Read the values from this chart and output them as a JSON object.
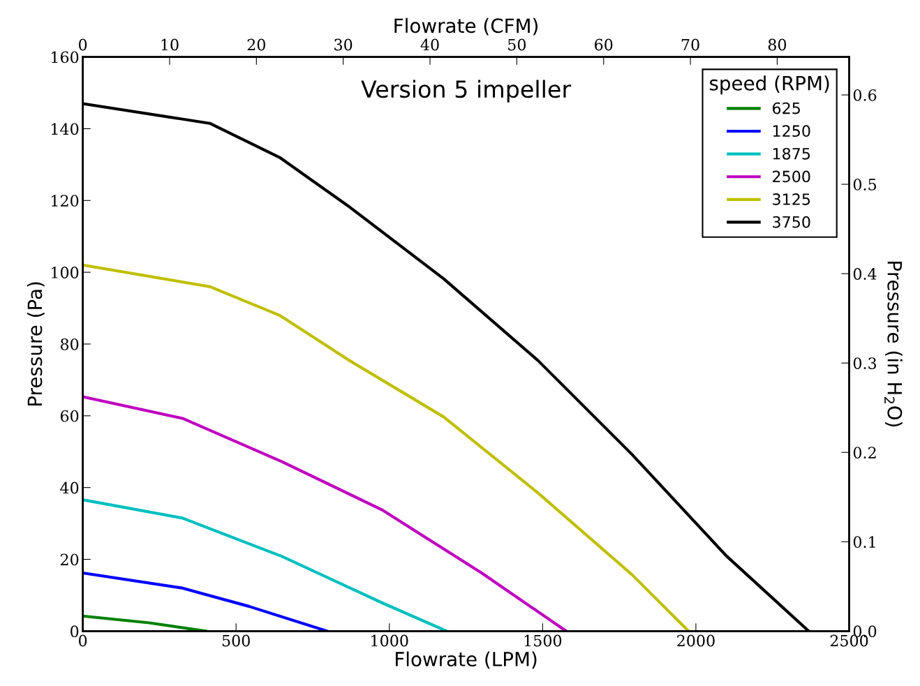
{
  "chart_data": {
    "type": "line",
    "title": "Version 5 impeller",
    "xlabel": "Flowrate (LPM)",
    "ylabel": "Pressure (Pa)",
    "x2label": "Flowrate (CFM)",
    "y2label": "Pressure (in H$_{2}$O)",
    "legend_title": "speed (RPM)",
    "legend": "top right",
    "grid": false,
    "marker": "none",
    "line_style": "solid",
    "xlim": [
      0,
      2500
    ],
    "xticks": [
      0,
      500,
      1000,
      1500,
      2000,
      2500
    ],
    "ylim": [
      0,
      160
    ],
    "yticks": [
      0,
      20,
      40,
      60,
      80,
      100,
      120,
      140,
      160
    ],
    "x2lim": [
      0,
      88.29
    ],
    "x2ticks": [
      0,
      10,
      20,
      30,
      40,
      50,
      60,
      70,
      80
    ],
    "y2lim": [
      0,
      0.6425
    ],
    "y2ticks": [
      {
        "value": 0,
        "label": "0.0"
      },
      0.1,
      0.2,
      0.3,
      0.4,
      0.5,
      0.6
    ],
    "series": [
      {
        "name": "625",
        "color": "#008000",
        "x": [
          0,
          217,
          401
        ],
        "values": [
          4.2,
          2.3,
          0
        ]
      },
      {
        "name": "1250",
        "color": "#0000ff",
        "x": [
          0,
          325,
          542,
          797
        ],
        "values": [
          16.2,
          12,
          6.9,
          0
        ]
      },
      {
        "name": "1875",
        "color": "#00bfbf",
        "x": [
          0,
          325,
          650,
          976,
          1187
        ],
        "values": [
          36.6,
          31.5,
          20.8,
          7.9,
          0
        ]
      },
      {
        "name": "2500",
        "color": "#bf00bf",
        "x": [
          0,
          325,
          650,
          976,
          1301,
          1577
        ],
        "values": [
          65.3,
          59.3,
          47.2,
          33.8,
          16.2,
          0
        ]
      },
      {
        "name": "3125",
        "color": "#bfbf00",
        "x": [
          0,
          414,
          642,
          870,
          1177,
          1485,
          1792,
          1976
        ],
        "values": [
          102,
          96,
          88,
          75.4,
          59.7,
          38.5,
          15.7,
          0
        ]
      },
      {
        "name": "3750",
        "color": "#000000",
        "x": [
          0,
          414,
          642,
          870,
          1177,
          1485,
          1792,
          2099,
          2368
        ],
        "values": [
          147,
          141.5,
          132,
          118.2,
          98.2,
          75.4,
          49.2,
          21,
          0
        ]
      }
    ]
  }
}
